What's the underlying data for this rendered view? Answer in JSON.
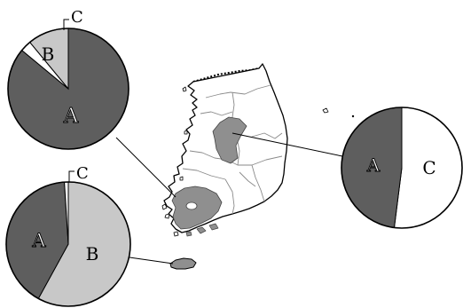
{
  "colors": {
    "A": "#5e5e5e",
    "B": "#c8c8c8",
    "C": "#ffffff",
    "outline": "#000000",
    "map_fill": "#ffffff",
    "map_highlight": "#8f8f8f"
  },
  "pies": [
    {
      "id": "top-left",
      "region": "west-central-coast",
      "slices": [
        {
          "key": "A",
          "label": "A",
          "share": 0.86
        },
        {
          "key": "C",
          "label": "C",
          "share": 0.03
        },
        {
          "key": "B",
          "label": "B",
          "share": 0.11
        }
      ]
    },
    {
      "id": "bottom-left",
      "region": "jeju-island",
      "slices": [
        {
          "key": "B",
          "label": "B",
          "share": 0.58
        },
        {
          "key": "A",
          "label": "A",
          "share": 0.41
        },
        {
          "key": "C",
          "label": "C",
          "share": 0.01
        }
      ]
    },
    {
      "id": "right",
      "region": "southwest-province",
      "slices": [
        {
          "key": "C",
          "label": "C",
          "share": 0.52
        },
        {
          "key": "A",
          "label": "A",
          "share": 0.48
        }
      ]
    }
  ]
}
